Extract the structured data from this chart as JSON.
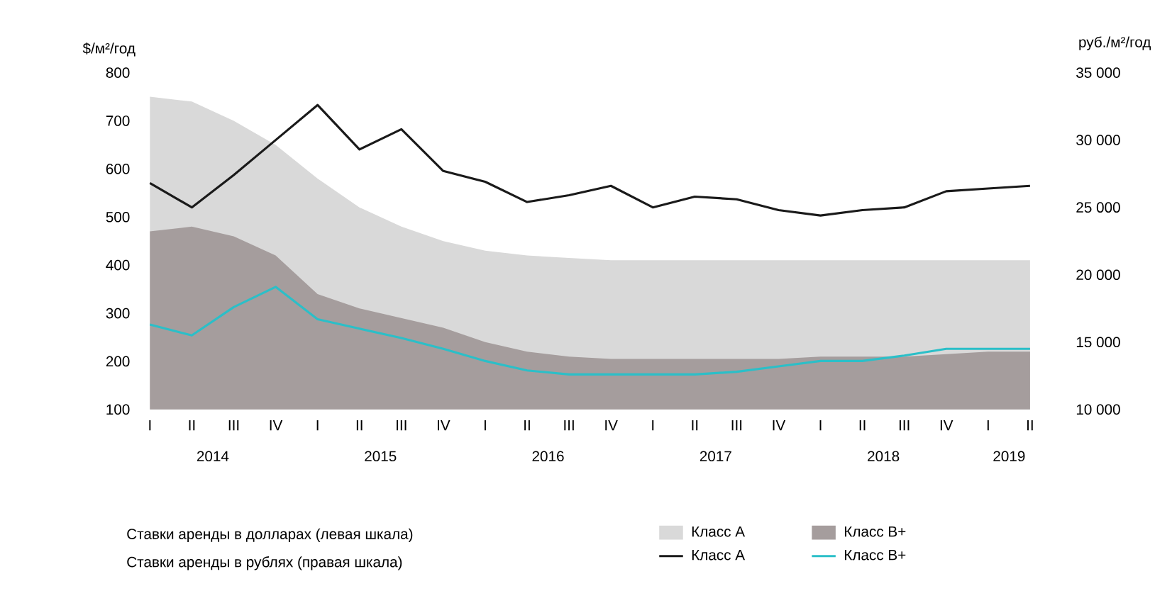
{
  "chart_data": {
    "type": "area",
    "ylabel": "$/м²/год",
    "y2label": "руб./м²/год",
    "categories": [
      "I",
      "II",
      "III",
      "IV",
      "I",
      "II",
      "III",
      "IV",
      "I",
      "II",
      "III",
      "IV",
      "I",
      "II",
      "III",
      "IV",
      "I",
      "II",
      "III",
      "IV",
      "I",
      "II"
    ],
    "annotations": [
      "2014",
      "2015",
      "2016",
      "2017",
      "2018",
      "2019",
      "Ставки аренды в долларах (левая шкала)",
      "Ставки аренды в рублях (правая шкала)"
    ],
    "series": [
      {
        "name": "Класс А",
        "color": "#d9d9d9",
        "values": [
          750,
          740,
          700,
          650,
          580,
          520,
          480,
          450,
          430,
          420,
          415,
          410,
          410,
          410,
          410,
          410,
          410,
          410,
          410,
          410,
          410,
          410
        ]
      },
      {
        "name": "Класс В+",
        "color": "#a59d9d",
        "values": [
          470,
          480,
          460,
          420,
          340,
          310,
          290,
          270,
          240,
          220,
          210,
          205,
          205,
          205,
          205,
          205,
          210,
          210,
          210,
          215,
          220,
          220
        ]
      },
      {
        "name": "Класс А",
        "type": "line",
        "axis": "y2",
        "color": "#1a1a1a",
        "values": [
          26800,
          25000,
          27400,
          30000,
          32600,
          29300,
          30800,
          27700,
          26900,
          25400,
          25900,
          26600,
          25000,
          25800,
          25600,
          24800,
          24400,
          24800,
          25000,
          26200,
          26400,
          26600
        ]
      },
      {
        "name": "Класс В+",
        "type": "line",
        "axis": "y2",
        "color": "#2bbfc8",
        "values": [
          16300,
          15500,
          17600,
          19100,
          16700,
          16000,
          15300,
          14500,
          13600,
          12900,
          12600,
          12600,
          12600,
          12600,
          12800,
          13200,
          13600,
          13600,
          14000,
          14500,
          14500,
          14500
        ]
      }
    ],
    "ylim": [
      100,
      800
    ],
    "yticks": [
      100,
      200,
      300,
      400,
      500,
      600,
      700,
      800
    ],
    "y2lim": [
      10000,
      35000
    ],
    "y2ticks": [
      {
        "value": 10000,
        "label": "10 000"
      },
      {
        "value": 15000,
        "label": "15 000"
      },
      {
        "value": 20000,
        "label": "20 000"
      },
      {
        "value": 25000,
        "label": "25 000"
      },
      {
        "value": 30000,
        "label": "30 000"
      },
      {
        "value": 35000,
        "label": "35 000"
      }
    ],
    "legend": "bottom"
  }
}
